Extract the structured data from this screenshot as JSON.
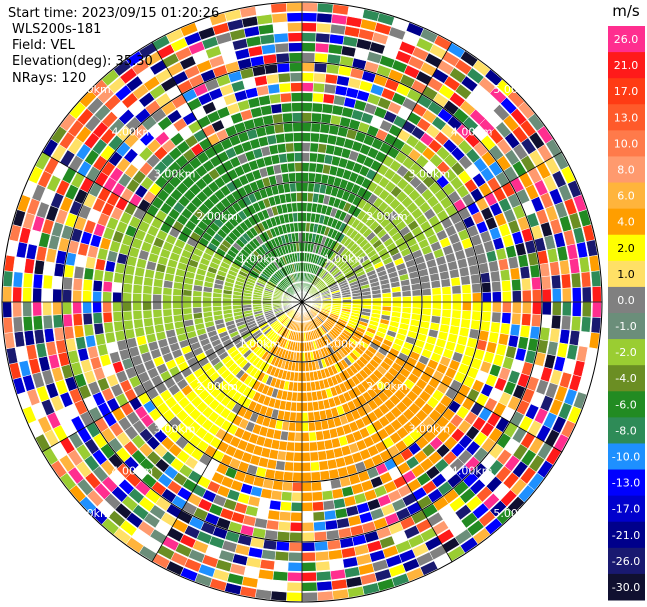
{
  "header": {
    "start_time": "Start time: 2023/09/15 01:20:26",
    "instrument": "WLS200s-181",
    "field": "Field: VEL",
    "elevation": "Elevation(deg): 35.30",
    "nrays": "NRays: 120"
  },
  "chart_data": {
    "type": "heatmap",
    "projection": "PPI polar",
    "range_rings_km": [
      1,
      2,
      3,
      4,
      5
    ],
    "ring_labels": [
      "1.00km",
      "2.00km",
      "3.00km",
      "4.00km",
      "5.00km"
    ],
    "colorbar": {
      "unit": "m/s",
      "ticks": [
        "26.0",
        "21.0",
        "17.0",
        "13.0",
        "10.0",
        "8.0",
        "6.0",
        "4.0",
        "2.0",
        "1.0",
        "0.0",
        "-1.0",
        "-2.0",
        "-4.0",
        "-6.0",
        "-8.0",
        "-10.0",
        "-13.0",
        "-17.0",
        "-21.0",
        "-26.0",
        "-30.0"
      ],
      "colors": [
        "#ff2e8f",
        "#ff1a1a",
        "#ff3b14",
        "#ff5a2a",
        "#ff7a4a",
        "#ff9a6e",
        "#ffb43c",
        "#ff9e00",
        "#ffff00",
        "#ffe066",
        "#808080",
        "#6b8e7a",
        "#9acd32",
        "#6b8e23",
        "#228b22",
        "#2e8b57",
        "#1e90ff",
        "#0000ff",
        "#0000cd",
        "#00008b",
        "#191970",
        "#101030"
      ]
    },
    "sectors": [
      {
        "from_deg": 300,
        "to_deg": 390,
        "value": -6.0
      },
      {
        "from_deg": 30,
        "to_deg": 65,
        "value": -2.0
      },
      {
        "from_deg": 65,
        "to_deg": 85,
        "value": 0.0
      },
      {
        "from_deg": 85,
        "to_deg": 115,
        "value": 2.0
      },
      {
        "from_deg": 115,
        "to_deg": 160,
        "value": 4.0
      },
      {
        "from_deg": 160,
        "to_deg": 210,
        "value": 4.0
      },
      {
        "from_deg": 210,
        "to_deg": 235,
        "value": 2.0
      },
      {
        "from_deg": 235,
        "to_deg": 255,
        "value": 0.0
      },
      {
        "from_deg": 255,
        "to_deg": 300,
        "value": -2.0
      }
    ]
  }
}
